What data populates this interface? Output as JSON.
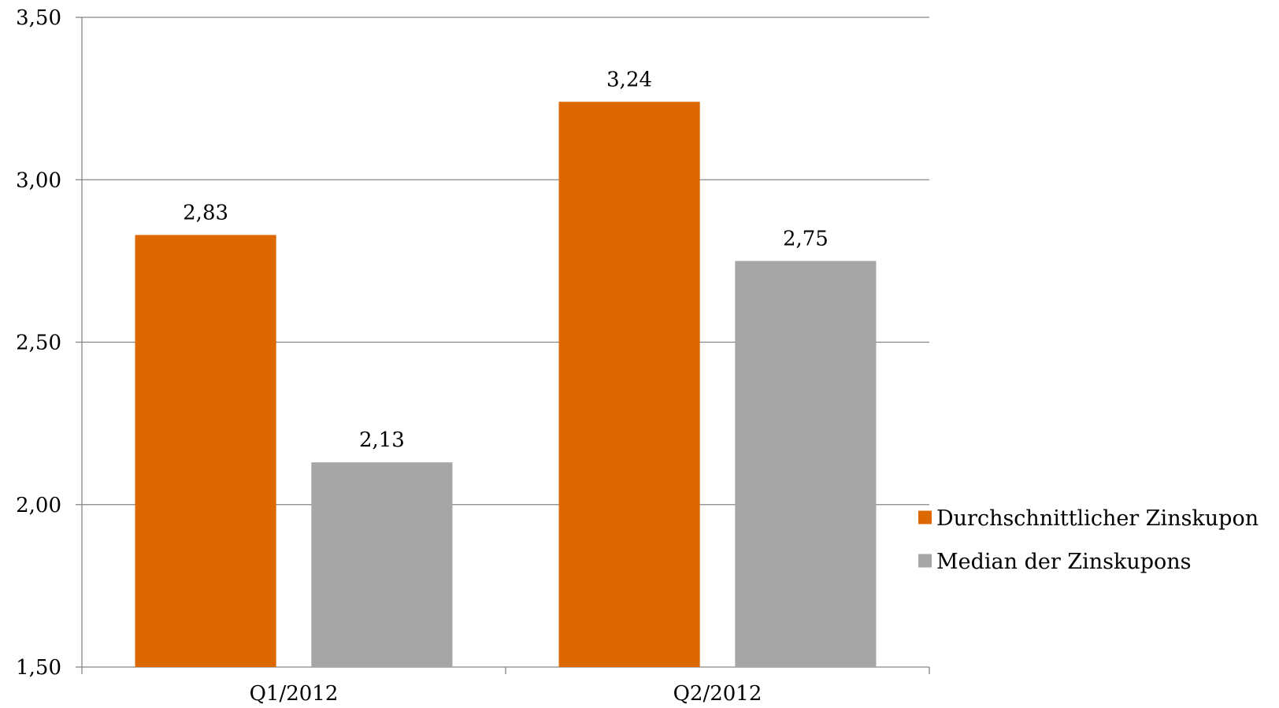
{
  "chart_data": {
    "type": "bar",
    "categories": [
      "Q1/2012",
      "Q2/2012"
    ],
    "series": [
      {
        "name": "Durchschnittlicher Zinskupon",
        "values": [
          2.83,
          3.24
        ],
        "labels": [
          "2,83",
          "3,24"
        ],
        "color": "#dd6800"
      },
      {
        "name": "Median der Zinskupons",
        "values": [
          2.13,
          2.75
        ],
        "labels": [
          "2,13",
          "2,75"
        ],
        "color": "#a6a6a6"
      }
    ],
    "yticks": [
      1.5,
      2.0,
      2.5,
      3.0,
      3.5
    ],
    "ytick_labels": [
      "1,50",
      "2,00",
      "2,50",
      "3,00",
      "3,50"
    ],
    "ylim": [
      1.5,
      3.5
    ],
    "title": "",
    "xlabel": "",
    "ylabel": "",
    "grid": true,
    "legend_position": "right"
  }
}
